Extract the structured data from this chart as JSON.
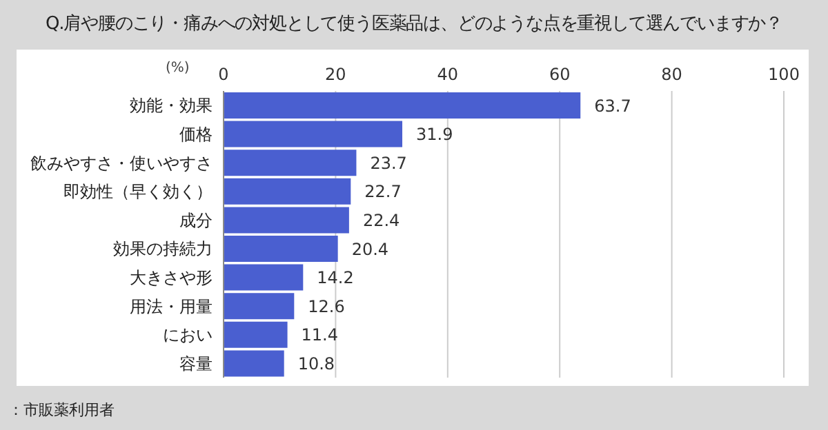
{
  "chart_data": {
    "type": "bar",
    "orientation": "horizontal",
    "title": "Q.肩や腰のこり・痛みへの対処として使う医薬品は、どのような点を重視して選んでいますか？",
    "xlabel": "(%)",
    "categories": [
      "効能・効果",
      "価格",
      "飲みやすさ・使いやすさ",
      "即効性（早く効く）",
      "成分",
      "効果の持続力",
      "大きさや形",
      "用法・用量",
      "におい",
      "容量"
    ],
    "values": [
      63.7,
      31.9,
      23.7,
      22.7,
      22.4,
      20.4,
      14.2,
      12.6,
      11.4,
      10.8
    ],
    "color": "#4a5fd0",
    "xlim": [
      0,
      100
    ],
    "xticks": [
      0,
      20,
      40,
      60,
      80,
      100
    ],
    "grid": "x",
    "data_labels": true,
    "annotations": [
      "：市販薬利用者"
    ]
  }
}
